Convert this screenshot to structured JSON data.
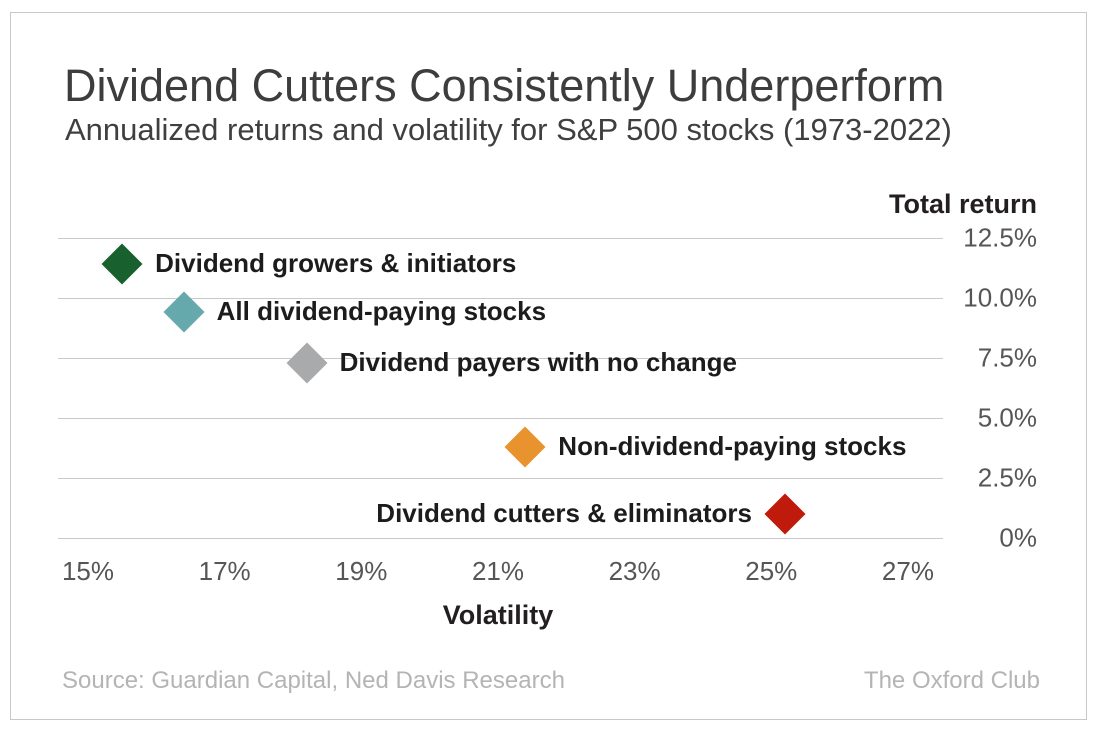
{
  "title": "Dividend Cutters Consistently Underperform",
  "subtitle": "Annualized returns and volatility for S&P 500 stocks (1973-2022)",
  "footer": {
    "source": "Source: Guardian Capital, Ned Davis Research",
    "brand": "The Oxford Club"
  },
  "chart_data": {
    "type": "scatter",
    "title": "Dividend Cutters Consistently Underperform",
    "subtitle": "Annualized returns and volatility for S&P 500 stocks (1973-2022)",
    "xlabel": "Volatility",
    "ylabel": "Total return",
    "xlim": [
      14.5,
      27.5
    ],
    "ylim": [
      0,
      13.5
    ],
    "grid": "horizontal-only",
    "legend_position": "none",
    "marker": "diamond",
    "x_ticks": [
      {
        "value": 15,
        "label": "15%"
      },
      {
        "value": 17,
        "label": "17%"
      },
      {
        "value": 19,
        "label": "19%"
      },
      {
        "value": 21,
        "label": "21%"
      },
      {
        "value": 23,
        "label": "23%"
      },
      {
        "value": 25,
        "label": "25%"
      },
      {
        "value": 27,
        "label": "27%"
      }
    ],
    "y_ticks": [
      {
        "value": 12.5,
        "label": "12.5%"
      },
      {
        "value": 10.0,
        "label": "10.0%"
      },
      {
        "value": 7.5,
        "label": "7.5%"
      },
      {
        "value": 5.0,
        "label": "5.0%"
      },
      {
        "value": 2.5,
        "label": "2.5%"
      },
      {
        "value": 0,
        "label": "0%"
      }
    ],
    "points": [
      {
        "label": "Dividend growers & initiators",
        "volatility": 15.5,
        "total_return": 11.4,
        "color": "#19602f",
        "label_side": "right"
      },
      {
        "label": "All dividend-paying stocks",
        "volatility": 16.4,
        "total_return": 9.4,
        "color": "#65a9ad",
        "label_side": "right"
      },
      {
        "label": "Dividend payers with no change",
        "volatility": 18.2,
        "total_return": 7.3,
        "color": "#a8aaac",
        "label_side": "right"
      },
      {
        "label": "Non-dividend-paying stocks",
        "volatility": 21.4,
        "total_return": 3.8,
        "color": "#e9932f",
        "label_side": "right"
      },
      {
        "label": "Dividend cutters & eliminators",
        "volatility": 25.2,
        "total_return": 1.0,
        "color": "#c01a0c",
        "label_side": "left"
      }
    ],
    "colors": {
      "gridline": "#c9c9c9",
      "tick_text": "#565656",
      "axis_title_text": "#231f20",
      "point_label_text": "#1c1c1c",
      "title_text": "#3d3d3d",
      "footer_text": "#b4b4b4",
      "frame_border": "#c8c8c8"
    }
  }
}
